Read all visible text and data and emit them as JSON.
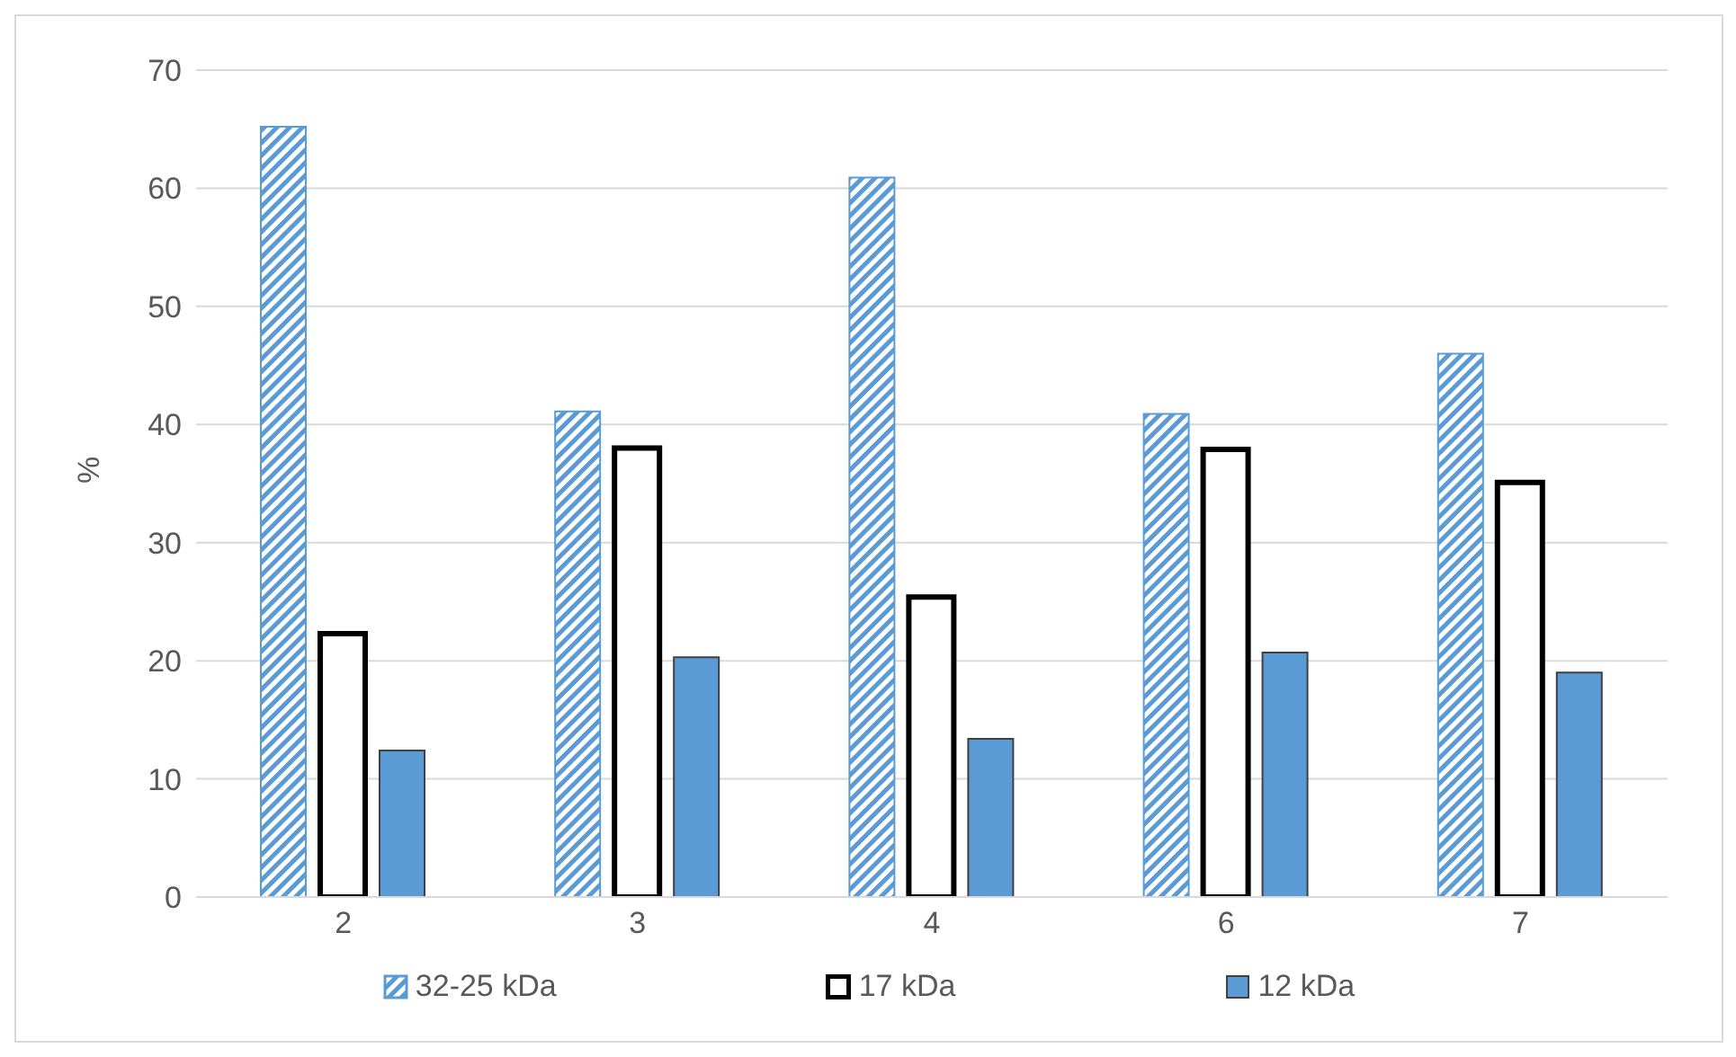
{
  "chart_data": {
    "type": "bar",
    "ylabel": "%",
    "categories": [
      "2",
      "3",
      "4",
      "6",
      "7"
    ],
    "series": [
      {
        "name": "32-25 kDa",
        "color": "#5b9bd5",
        "values": [
          65.2,
          41.1,
          60.9,
          40.9,
          46.0
        ]
      },
      {
        "name": "17 kDa",
        "color": "#ffffff",
        "values": [
          22.3,
          38.0,
          25.4,
          37.9,
          35.1
        ]
      },
      {
        "name": "12 kDa",
        "color": "#5b9bd5",
        "values": [
          12.4,
          20.3,
          13.4,
          20.7,
          19.0
        ]
      }
    ],
    "ylim": [
      0,
      70
    ],
    "yticks": [
      0,
      10,
      20,
      30,
      40,
      50,
      60,
      70
    ],
    "grid": "y",
    "legend": "bottom"
  }
}
